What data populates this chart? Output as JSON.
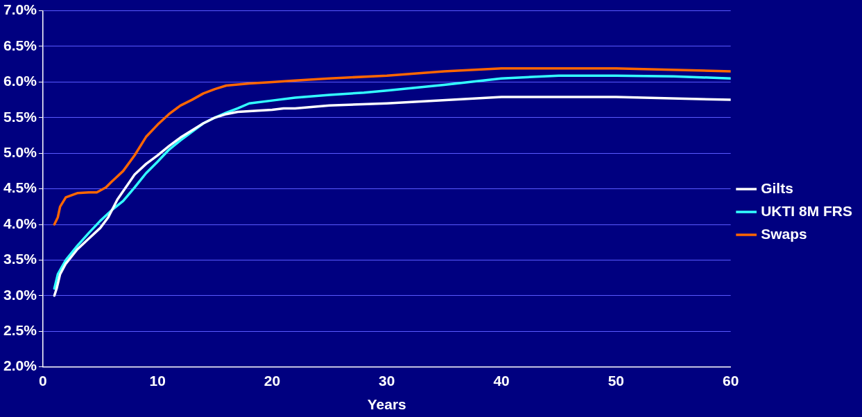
{
  "chart_data": {
    "type": "line",
    "xlabel": "Years",
    "xlim": [
      0,
      60
    ],
    "xticks": [
      0,
      10,
      20,
      30,
      40,
      50,
      60
    ],
    "ylim": [
      2.0,
      7.0
    ],
    "yticks": [
      {
        "value": 2.0,
        "label": "2.0%"
      },
      {
        "value": 2.5,
        "label": "2.5%"
      },
      {
        "value": 3.0,
        "label": "3.0%"
      },
      {
        "value": 3.5,
        "label": "3.5%"
      },
      {
        "value": 4.0,
        "label": "4.0%"
      },
      {
        "value": 4.5,
        "label": "4.5%"
      },
      {
        "value": 5.0,
        "label": "5.0%"
      },
      {
        "value": 5.5,
        "label": "5.5%"
      },
      {
        "value": 6.0,
        "label": "6.0%"
      },
      {
        "value": 6.5,
        "label": "6.5%"
      },
      {
        "value": 7.0,
        "label": "7.0%"
      }
    ],
    "grid": "y",
    "legend": "right",
    "marker": "none",
    "series": [
      {
        "name": "Gilts",
        "color": "#ffffff",
        "x": [
          1,
          1.2,
          1.5,
          2,
          3,
          4,
          5,
          5.7,
          6.5,
          8,
          9,
          10,
          11,
          12,
          13,
          14,
          15,
          16,
          17,
          18,
          19,
          20,
          21,
          22,
          25,
          30,
          40,
          50,
          60
        ],
        "values": [
          3.0,
          3.1,
          3.3,
          3.45,
          3.65,
          3.8,
          3.95,
          4.1,
          4.35,
          4.7,
          4.85,
          4.97,
          5.1,
          5.22,
          5.32,
          5.42,
          5.5,
          5.55,
          5.58,
          5.59,
          5.6,
          5.61,
          5.63,
          5.63,
          5.67,
          5.7,
          5.79,
          5.79,
          5.75
        ]
      },
      {
        "name": "UKTI 8M FRS",
        "color": "#33ffff",
        "x": [
          1,
          1.3,
          2,
          3,
          4,
          5,
          6,
          7,
          8,
          9,
          10,
          11,
          12,
          13,
          14,
          15,
          16,
          17,
          18,
          20,
          22,
          25,
          28,
          30,
          35,
          40,
          45,
          50,
          55,
          60
        ],
        "values": [
          3.1,
          3.3,
          3.5,
          3.7,
          3.88,
          4.05,
          4.2,
          4.33,
          4.52,
          4.72,
          4.88,
          5.05,
          5.18,
          5.3,
          5.42,
          5.5,
          5.57,
          5.63,
          5.7,
          5.74,
          5.78,
          5.82,
          5.85,
          5.88,
          5.96,
          6.05,
          6.09,
          6.09,
          6.08,
          6.05
        ]
      },
      {
        "name": "Swaps",
        "color": "#ff6600",
        "x": [
          1,
          1.3,
          1.5,
          2,
          3,
          4,
          4.7,
          5.5,
          6,
          7,
          8,
          9,
          10,
          11,
          12,
          13,
          14,
          15,
          16,
          18,
          20,
          22,
          25,
          30,
          35,
          40,
          50,
          60
        ],
        "values": [
          4.0,
          4.1,
          4.25,
          4.38,
          4.44,
          4.45,
          4.45,
          4.52,
          4.6,
          4.75,
          4.97,
          5.23,
          5.4,
          5.55,
          5.67,
          5.75,
          5.84,
          5.9,
          5.95,
          5.98,
          6.0,
          6.02,
          6.05,
          6.09,
          6.15,
          6.19,
          6.19,
          6.15
        ]
      }
    ]
  }
}
